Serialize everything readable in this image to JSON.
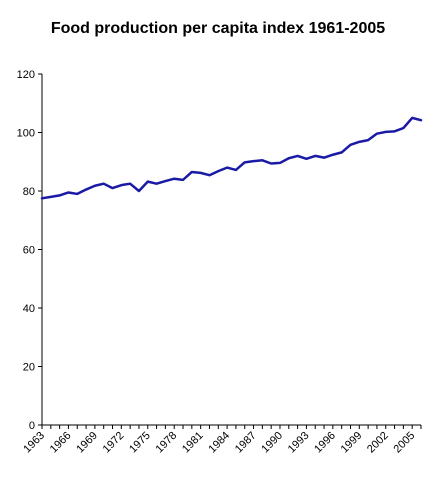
{
  "chart_data": {
    "type": "line",
    "title": "Food production per capita index 1961-2005",
    "xlabel": "",
    "ylabel": "",
    "xlim": [
      1963,
      2006
    ],
    "ylim": [
      0,
      120
    ],
    "yticks": [
      0,
      20,
      40,
      60,
      80,
      100,
      120
    ],
    "xticks": [
      1963,
      1966,
      1969,
      1972,
      1975,
      1978,
      1981,
      1984,
      1987,
      1990,
      1993,
      1996,
      1999,
      2002,
      2005
    ],
    "grid": false,
    "legend": "none",
    "line_color": "#1a1aa6",
    "x": [
      1963,
      1964,
      1965,
      1966,
      1967,
      1968,
      1969,
      1970,
      1971,
      1972,
      1973,
      1974,
      1975,
      1976,
      1977,
      1978,
      1979,
      1980,
      1981,
      1982,
      1983,
      1984,
      1985,
      1986,
      1987,
      1988,
      1989,
      1990,
      1991,
      1992,
      1993,
      1994,
      1995,
      1996,
      1997,
      1998,
      1999,
      2000,
      2001,
      2002,
      2003,
      2004,
      2005,
      2006
    ],
    "series": [
      {
        "values": [
          77.5,
          78,
          78.5,
          79.5,
          79,
          80.5,
          81.8,
          82.5,
          81,
          82,
          82.5,
          80,
          83.2,
          82.5,
          83.4,
          84.2,
          83.8,
          86.5,
          86.2,
          85.4,
          86.8,
          88,
          87.2,
          89.8,
          90.2,
          90.5,
          89.4,
          89.6,
          91.2,
          92,
          91,
          92,
          91.4,
          92.4,
          93.2,
          95.8,
          96.8,
          97.4,
          99.6,
          100.2,
          100.4,
          101.5,
          105,
          104.2
        ]
      }
    ]
  }
}
